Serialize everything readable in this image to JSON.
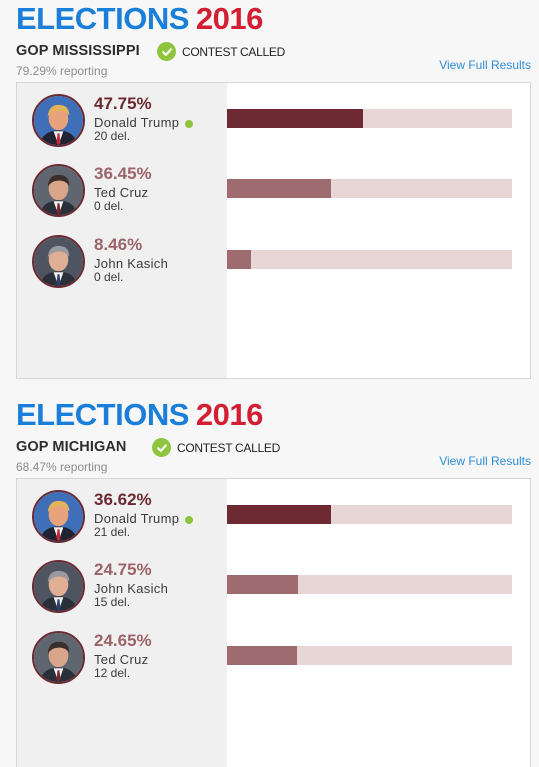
{
  "colors": {
    "brand_blue": "#1a7fd8",
    "brand_red": "#d21f32",
    "winner_bar": "#6e2a33",
    "other_bar": "#9e6b70",
    "bar_track": "#e8d5d6",
    "called_green": "#8dc53e",
    "link": "#2e8ed8"
  },
  "races": [
    {
      "brand_word": "ELECTIONS",
      "brand_year": "2016",
      "title": "GOP MISSISSIPPI",
      "status": "CONTEST CALLED",
      "status_icon": "check-circle-icon",
      "reporting": "79.29% reporting",
      "link": "View Full Results",
      "candidates": [
        {
          "name": "Donald Trump",
          "pct_label": "47.75%",
          "pct": 47.75,
          "delegates": "20 del.",
          "winner": true,
          "avatar": "trump"
        },
        {
          "name": "Ted Cruz",
          "pct_label": "36.45%",
          "pct": 36.45,
          "delegates": "0 del.",
          "winner": false,
          "avatar": "cruz"
        },
        {
          "name": "John Kasich",
          "pct_label": "8.46%",
          "pct": 8.46,
          "delegates": "0 del.",
          "winner": false,
          "avatar": "kasich"
        }
      ]
    },
    {
      "brand_word": "ELECTIONS",
      "brand_year": "2016",
      "title": "GOP MICHIGAN",
      "status": "CONTEST CALLED",
      "status_icon": "check-circle-icon",
      "reporting": "68.47% reporting",
      "link": "View Full Results",
      "candidates": [
        {
          "name": "Donald Trump",
          "pct_label": "36.62%",
          "pct": 36.62,
          "delegates": "21 del.",
          "winner": true,
          "avatar": "trump"
        },
        {
          "name": "John Kasich",
          "pct_label": "24.75%",
          "pct": 24.75,
          "delegates": "15 del.",
          "winner": false,
          "avatar": "kasich"
        },
        {
          "name": "Ted Cruz",
          "pct_label": "24.65%",
          "pct": 24.65,
          "delegates": "12 del.",
          "winner": false,
          "avatar": "cruz"
        }
      ]
    }
  ]
}
